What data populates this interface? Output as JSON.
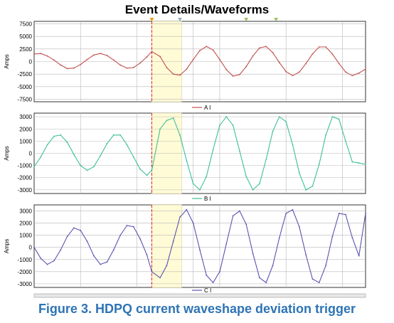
{
  "header": {
    "title": "Event Details/Waveforms"
  },
  "caption": {
    "text": "Figure 3. HDPQ current waveshape deviation trigger"
  },
  "colors": {
    "series_a": "#c0504d",
    "series_b": "#3dbf9b",
    "series_c": "#5a55b0",
    "trigger_line": "#e02020",
    "highlight": "#fffbd6"
  },
  "chart_data": [
    {
      "type": "line",
      "ylabel": "Amps",
      "ylim": [
        -8000,
        8000
      ],
      "yticks": [
        7500,
        5000,
        2500,
        0,
        -2500,
        -5000,
        -7500
      ],
      "grid": true,
      "legend": {
        "position": "bottom-center",
        "entries": [
          "A I"
        ]
      },
      "trigger_x": 0.355,
      "highlight_range": [
        0.355,
        0.445
      ],
      "series": [
        {
          "name": "A I",
          "x": [
            0,
            0.02,
            0.04,
            0.06,
            0.08,
            0.1,
            0.12,
            0.14,
            0.16,
            0.18,
            0.2,
            0.22,
            0.24,
            0.26,
            0.28,
            0.3,
            0.32,
            0.34,
            0.355,
            0.38,
            0.4,
            0.42,
            0.44,
            0.46,
            0.48,
            0.5,
            0.52,
            0.54,
            0.56,
            0.58,
            0.6,
            0.62,
            0.64,
            0.66,
            0.68,
            0.7,
            0.72,
            0.74,
            0.76,
            0.78,
            0.8,
            0.82,
            0.84,
            0.86,
            0.88,
            0.9,
            0.92,
            0.94,
            0.96,
            0.98,
            1.0
          ],
          "y": [
            1500,
            1600,
            1100,
            300,
            -700,
            -1400,
            -1300,
            -600,
            400,
            1300,
            1600,
            1200,
            300,
            -700,
            -1300,
            -1200,
            -300,
            900,
            2000,
            1000,
            -1200,
            -2500,
            -2700,
            -1500,
            400,
            2200,
            3000,
            2300,
            400,
            -1600,
            -2900,
            -2600,
            -1000,
            1100,
            2700,
            3000,
            1800,
            -200,
            -2000,
            -2800,
            -2100,
            -400,
            1500,
            2900,
            2900,
            1500,
            -400,
            -2100,
            -2800,
            -2300,
            -1500
          ]
        }
      ]
    },
    {
      "type": "line",
      "ylabel": "Amps",
      "ylim": [
        -3300,
        3300
      ],
      "yticks": [
        3000,
        2000,
        1000,
        0,
        -1000,
        -2000,
        -3000
      ],
      "grid": true,
      "legend": {
        "position": "bottom-center",
        "entries": [
          "B I"
        ]
      },
      "trigger_x": 0.355,
      "highlight_range": [
        0.355,
        0.445
      ],
      "series": [
        {
          "name": "B I",
          "x": [
            0,
            0.02,
            0.04,
            0.06,
            0.08,
            0.1,
            0.12,
            0.14,
            0.16,
            0.18,
            0.2,
            0.22,
            0.24,
            0.26,
            0.28,
            0.3,
            0.32,
            0.34,
            0.355,
            0.38,
            0.4,
            0.42,
            0.44,
            0.46,
            0.48,
            0.5,
            0.52,
            0.54,
            0.56,
            0.58,
            0.6,
            0.62,
            0.64,
            0.66,
            0.68,
            0.7,
            0.72,
            0.74,
            0.76,
            0.78,
            0.8,
            0.82,
            0.84,
            0.86,
            0.88,
            0.9,
            0.92,
            0.94,
            0.96,
            0.98,
            1.0
          ],
          "y": [
            -1100,
            -300,
            700,
            1400,
            1500,
            900,
            -100,
            -1000,
            -1400,
            -1100,
            -200,
            800,
            1500,
            1500,
            700,
            -300,
            -1300,
            -1800,
            -1400,
            2000,
            2700,
            2900,
            1500,
            -600,
            -2500,
            -3000,
            -1900,
            300,
            2300,
            3000,
            2300,
            200,
            -1900,
            -3000,
            -2500,
            -500,
            1800,
            3000,
            2600,
            700,
            -1600,
            -3000,
            -2700,
            -900,
            1500,
            3000,
            2800,
            1000,
            -700,
            -800,
            -900
          ]
        }
      ]
    },
    {
      "type": "line",
      "ylabel": "Amps",
      "ylim": [
        -3300,
        3500
      ],
      "yticks": [
        3000,
        2000,
        1000,
        0,
        -1000,
        -2000,
        -3000
      ],
      "grid": true,
      "legend": {
        "position": "bottom-center",
        "entries": [
          "C I"
        ]
      },
      "trigger_x": 0.355,
      "highlight_range": [
        0.355,
        0.445
      ],
      "series": [
        {
          "name": "C I",
          "x": [
            0,
            0.02,
            0.04,
            0.06,
            0.08,
            0.1,
            0.12,
            0.14,
            0.16,
            0.18,
            0.2,
            0.22,
            0.24,
            0.26,
            0.28,
            0.3,
            0.32,
            0.34,
            0.355,
            0.38,
            0.4,
            0.42,
            0.44,
            0.46,
            0.48,
            0.5,
            0.52,
            0.54,
            0.56,
            0.58,
            0.6,
            0.62,
            0.64,
            0.66,
            0.68,
            0.7,
            0.72,
            0.74,
            0.76,
            0.78,
            0.8,
            0.82,
            0.84,
            0.86,
            0.88,
            0.9,
            0.92,
            0.94,
            0.96,
            0.98,
            1.0
          ],
          "y": [
            0,
            -900,
            -1400,
            -1100,
            -200,
            900,
            1600,
            1400,
            500,
            -700,
            -1400,
            -1200,
            -200,
            1000,
            1800,
            1700,
            700,
            -600,
            -2000,
            -2500,
            -1500,
            500,
            2500,
            3100,
            2000,
            -200,
            -2300,
            -2900,
            -2000,
            300,
            2600,
            3000,
            1900,
            -500,
            -2500,
            -2900,
            -1500,
            800,
            2800,
            3100,
            1700,
            -600,
            -2600,
            -2900,
            -1500,
            900,
            2800,
            2700,
            800,
            -700,
            2800
          ]
        }
      ]
    }
  ]
}
